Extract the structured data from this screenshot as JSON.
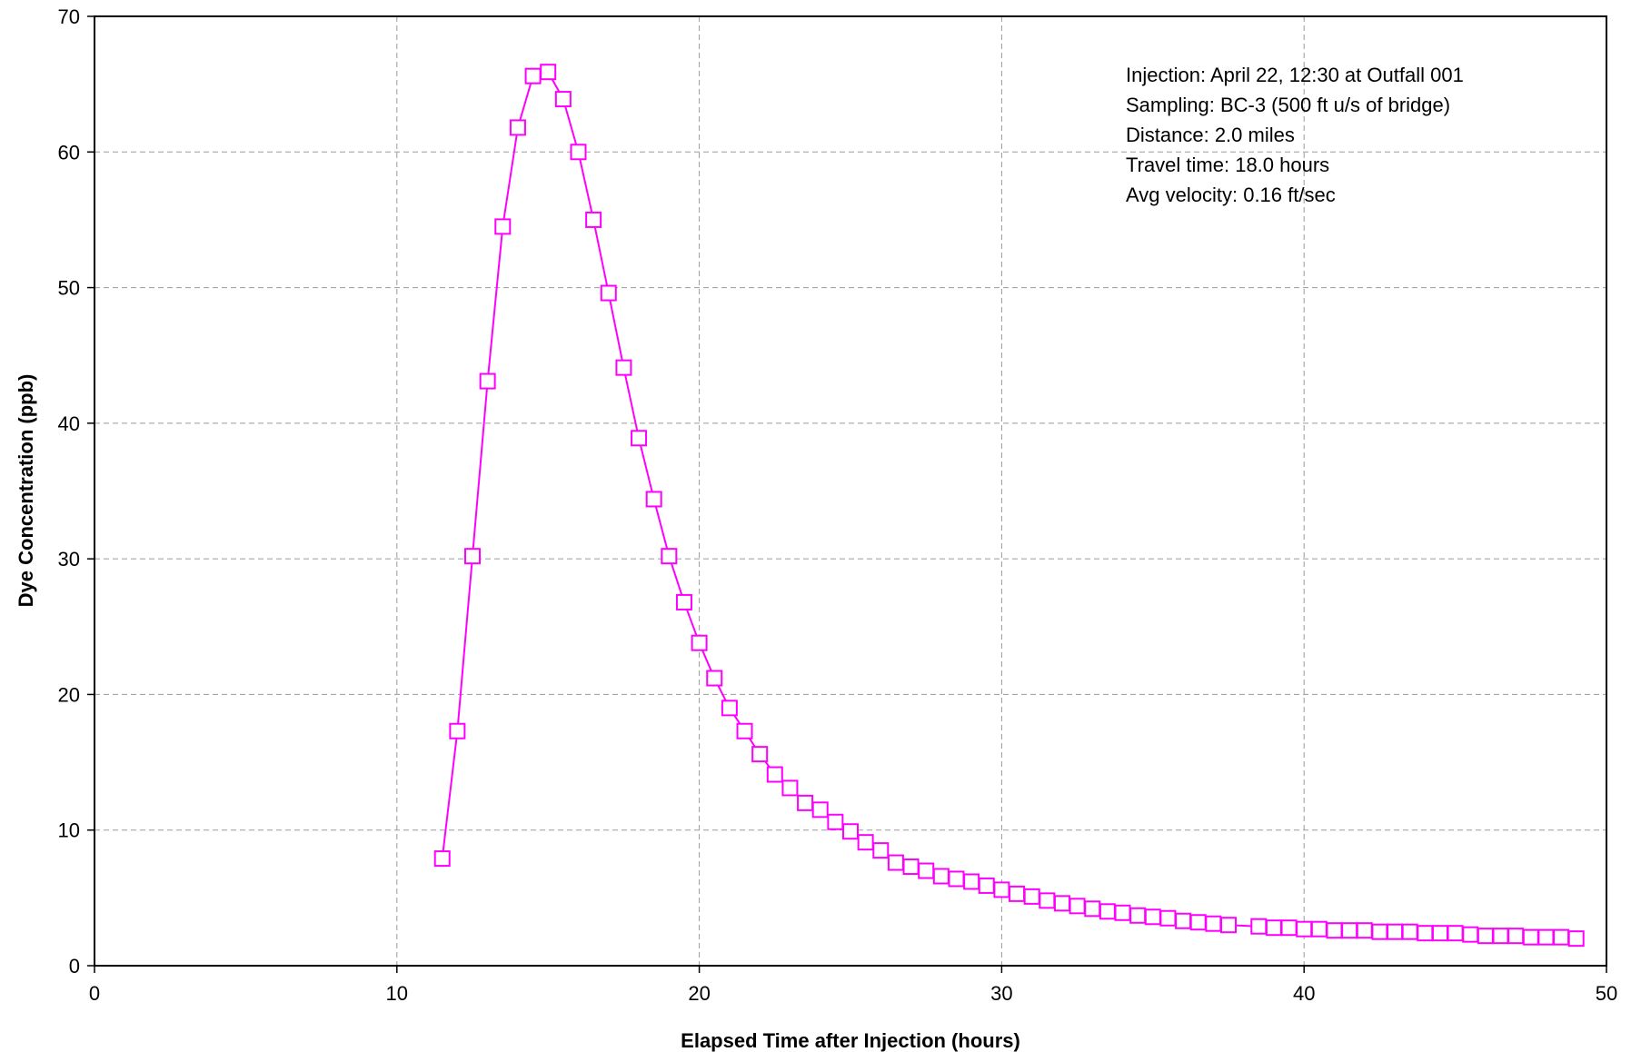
{
  "chart_data": {
    "type": "line",
    "title": "",
    "xlabel": "Elapsed Time after Injection (hours)",
    "ylabel": "Dye Concentration (ppb)",
    "xlim": [
      0,
      50
    ],
    "ylim": [
      0,
      70
    ],
    "xticks": [
      0,
      10,
      20,
      30,
      40,
      50
    ],
    "yticks": [
      0,
      10,
      20,
      30,
      40,
      50,
      60,
      70
    ],
    "xtick_labels": [
      "0",
      "10",
      "20",
      "30",
      "40",
      "50"
    ],
    "ytick_labels": [
      "0",
      "10",
      "20",
      "30",
      "40",
      "50",
      "60",
      "70"
    ],
    "grid": true,
    "marker": "open-square",
    "color": "#ff00ff",
    "annotations": [
      "Injection: April 22, 12:30 at Outfall 001",
      "Sampling: BC-3 (500 ft u/s of bridge)",
      "Distance: 2.0 miles",
      "Travel time:  18.0 hours",
      "Avg velocity:  0.16 ft/sec"
    ],
    "series": [
      {
        "x": [
          11.5,
          12.0,
          12.5,
          13.0,
          13.5,
          14.0,
          14.5,
          15.0,
          15.5,
          16.0,
          16.5,
          17.0,
          17.5,
          18.0,
          18.5,
          19.0,
          19.5,
          20.0,
          20.5,
          21.0,
          21.5,
          22.0,
          22.5,
          23.0,
          23.5,
          24.0,
          24.5,
          25.0,
          25.5,
          26.0,
          26.5,
          27.0,
          27.5,
          28.0,
          28.5,
          29.0,
          29.5,
          30.0,
          30.5,
          31.0,
          31.5,
          32.0,
          32.5,
          33.0,
          33.5,
          34.0,
          34.5,
          35.0,
          35.5,
          36.0,
          36.5,
          37.0,
          37.5,
          38.5,
          39.0,
          39.5,
          40.0,
          40.5,
          41.0,
          41.5,
          42.0,
          42.5,
          43.0,
          43.5,
          44.0,
          44.5,
          45.0,
          45.5,
          46.0,
          46.5,
          47.0,
          47.5,
          48.0,
          48.5,
          49.0
        ],
        "y": [
          7.9,
          17.3,
          30.2,
          43.1,
          54.5,
          61.8,
          65.6,
          65.9,
          63.9,
          60.0,
          55.0,
          49.6,
          44.1,
          38.9,
          34.4,
          30.2,
          26.8,
          23.8,
          21.2,
          19.0,
          17.3,
          15.6,
          14.1,
          13.1,
          12.0,
          11.5,
          10.6,
          9.9,
          9.1,
          8.5,
          7.6,
          7.3,
          7.0,
          6.6,
          6.4,
          6.2,
          5.9,
          5.6,
          5.3,
          5.1,
          4.8,
          4.6,
          4.4,
          4.2,
          4.0,
          3.9,
          3.7,
          3.6,
          3.5,
          3.3,
          3.2,
          3.1,
          3.0,
          2.9,
          2.8,
          2.8,
          2.7,
          2.7,
          2.6,
          2.6,
          2.6,
          2.5,
          2.5,
          2.5,
          2.4,
          2.4,
          2.4,
          2.3,
          2.2,
          2.2,
          2.2,
          2.1,
          2.1,
          2.1,
          2.0
        ]
      }
    ]
  }
}
